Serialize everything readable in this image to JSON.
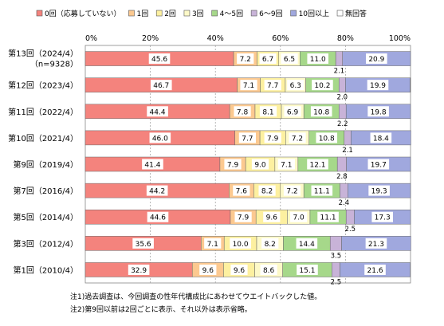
{
  "chart_data": {
    "type": "bar",
    "stacked": true,
    "orientation": "horizontal",
    "xlim": [
      0,
      100
    ],
    "x_ticks": [
      "0%",
      "20%",
      "40%",
      "60%",
      "80%",
      "100%"
    ],
    "legend": {
      "placement": "top",
      "entries": [
        {
          "label": "0回（応募していない）",
          "color": "#f4837d"
        },
        {
          "label": "1回",
          "color": "#fcc990"
        },
        {
          "label": "2回",
          "color": "#fdf0a0"
        },
        {
          "label": "3回",
          "color": "#fdf9c8"
        },
        {
          "label": "4～5回",
          "color": "#a6d88a"
        },
        {
          "label": "6～9回",
          "color": "#c8b3d8"
        },
        {
          "label": "10回以上",
          "color": "#a0a8de"
        },
        {
          "label": "無回答",
          "color": "#ffffff"
        }
      ]
    },
    "categories": [
      [
        "第13回（2024/4）",
        "（n=9328）"
      ],
      [
        "第12回（2023/4）"
      ],
      [
        "第11回（2022/4）"
      ],
      [
        "第10回（2021/4）"
      ],
      [
        "第9回（2019/4）"
      ],
      [
        "第7回（2016/4）"
      ],
      [
        "第5回（2014/4）"
      ],
      [
        "第3回（2012/4）"
      ],
      [
        "第1回（2010/4）"
      ]
    ],
    "rows": [
      {
        "values": [
          45.6,
          7.2,
          6.7,
          6.5,
          11.0,
          2.1,
          20.9,
          0.0
        ],
        "labels": [
          "45.6",
          "7.2",
          "6.7",
          "6.5",
          "11.0",
          "2.1",
          "20.9",
          ""
        ]
      },
      {
        "values": [
          46.7,
          7.1,
          7.7,
          6.3,
          10.2,
          2.0,
          19.9,
          0.1
        ],
        "labels": [
          "46.7",
          "7.1",
          "7.7",
          "6.3",
          "10.2",
          "2.0",
          "19.9",
          ""
        ]
      },
      {
        "values": [
          44.4,
          7.8,
          8.1,
          6.9,
          10.8,
          2.2,
          19.8,
          0.0
        ],
        "labels": [
          "44.4",
          "7.8",
          "8.1",
          "6.9",
          "10.8",
          "2.2",
          "19.8",
          ""
        ]
      },
      {
        "values": [
          46.0,
          7.7,
          7.9,
          7.2,
          10.8,
          2.1,
          18.4,
          0.0
        ],
        "labels": [
          "46.0",
          "7.7",
          "7.9",
          "7.2",
          "10.8",
          "2.1",
          "18.4",
          ""
        ]
      },
      {
        "values": [
          41.4,
          7.9,
          9.0,
          7.1,
          12.1,
          2.8,
          19.7,
          0.0
        ],
        "labels": [
          "41.4",
          "7.9",
          "9.0",
          "7.1",
          "12.1",
          "2.8",
          "19.7",
          ""
        ]
      },
      {
        "values": [
          44.2,
          7.6,
          8.2,
          7.2,
          11.1,
          2.4,
          19.3,
          0.0
        ],
        "labels": [
          "44.2",
          "7.6",
          "8.2",
          "7.2",
          "11.1",
          "2.4",
          "19.3",
          ""
        ]
      },
      {
        "values": [
          44.6,
          7.9,
          9.6,
          7.0,
          11.1,
          2.5,
          17.3,
          0.0
        ],
        "labels": [
          "44.6",
          "7.9",
          "9.6",
          "7.0",
          "11.1",
          "2.5",
          "17.3",
          ""
        ]
      },
      {
        "values": [
          35.6,
          7.1,
          10.0,
          8.2,
          14.4,
          3.5,
          21.3,
          0.0
        ],
        "labels": [
          "35.6",
          "7.1",
          "10.0",
          "8.2",
          "14.4",
          "3.5",
          "21.3",
          ""
        ]
      },
      {
        "values": [
          32.9,
          9.6,
          9.6,
          8.6,
          15.1,
          2.5,
          21.6,
          0.0
        ],
        "labels": [
          "32.9",
          "9.6",
          "9.6",
          "8.6",
          "15.1",
          "2.5",
          "21.6",
          ""
        ]
      }
    ]
  },
  "notes": {
    "note1": "注1)過去調査は、今回調査の性年代構成比にあわせてウエイトバックした値。",
    "note2": "注2)第9回以前は2回ごとに表示、それ以外は表示省略。"
  }
}
